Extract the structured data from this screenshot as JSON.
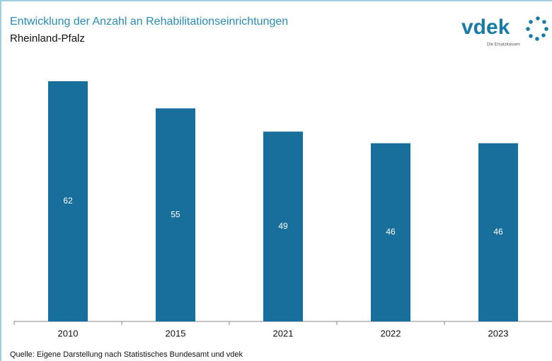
{
  "chart_data": {
    "type": "bar",
    "title": "Entwicklung der Anzahl an Rehabilitationseinrichtungen",
    "subtitle": "Rheinland-Pfalz",
    "logo": "vdek",
    "logo_tagline": "Die Ersatzkassen",
    "source": "Quelle: Eigene Darstellung nach Statistisches Bundesamt und vdek",
    "categories": [
      "2010",
      "2015",
      "2021",
      "2022",
      "2023"
    ],
    "values": [
      62,
      55,
      49,
      46,
      46
    ],
    "color": "#196f9b"
  }
}
